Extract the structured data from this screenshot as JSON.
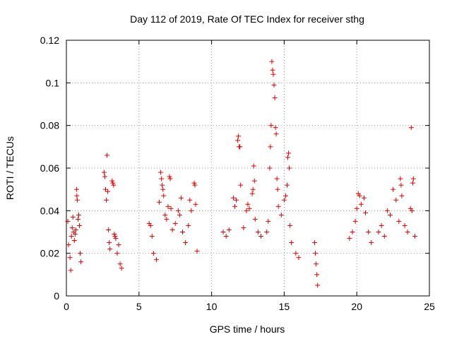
{
  "chart_data": {
    "type": "scatter",
    "title": "Day 112 of 2019, Rate Of TEC Index for receiver sthg",
    "xlabel": "GPS time / hours",
    "ylabel": "ROTI / TECUs",
    "xlim": [
      0,
      25
    ],
    "ylim": [
      0,
      0.12
    ],
    "grid": true,
    "marker": "+",
    "color": "#e00000",
    "x_ticks": [
      {
        "value": 0,
        "label": "0"
      },
      {
        "value": 5,
        "label": "5"
      },
      {
        "value": 10,
        "label": "10"
      },
      {
        "value": 15,
        "label": "15"
      },
      {
        "value": 20,
        "label": "20"
      },
      {
        "value": 25,
        "label": "25"
      }
    ],
    "y_ticks": [
      {
        "value": 0,
        "label": "0"
      },
      {
        "value": 0.02,
        "label": "0.02"
      },
      {
        "value": 0.04,
        "label": "0.04"
      },
      {
        "value": 0.06,
        "label": "0.06"
      },
      {
        "value": 0.08,
        "label": "0.08"
      },
      {
        "value": 0.1,
        "label": "0.1"
      },
      {
        "value": 0.12,
        "label": "0.12"
      }
    ],
    "series": [
      {
        "name": "ROTI",
        "points": [
          [
            0.1,
            0.035
          ],
          [
            0.15,
            0.024
          ],
          [
            0.25,
            0.018
          ],
          [
            0.3,
            0.012
          ],
          [
            0.35,
            0.028
          ],
          [
            0.4,
            0.032
          ],
          [
            0.45,
            0.037
          ],
          [
            0.5,
            0.03
          ],
          [
            0.55,
            0.026
          ],
          [
            0.6,
            0.029
          ],
          [
            0.65,
            0.031
          ],
          [
            0.7,
            0.05
          ],
          [
            0.72,
            0.047
          ],
          [
            0.75,
            0.045
          ],
          [
            0.8,
            0.036
          ],
          [
            0.85,
            0.038
          ],
          [
            0.9,
            0.033
          ],
          [
            0.95,
            0.02
          ],
          [
            1.0,
            0.016
          ],
          [
            2.6,
            0.058
          ],
          [
            2.65,
            0.056
          ],
          [
            2.7,
            0.05
          ],
          [
            2.75,
            0.045
          ],
          [
            2.8,
            0.066
          ],
          [
            2.85,
            0.049
          ],
          [
            2.9,
            0.031
          ],
          [
            2.95,
            0.025
          ],
          [
            3.0,
            0.022
          ],
          [
            3.15,
            0.054
          ],
          [
            3.2,
            0.053
          ],
          [
            3.25,
            0.052
          ],
          [
            3.3,
            0.029
          ],
          [
            3.35,
            0.028
          ],
          [
            3.4,
            0.027
          ],
          [
            3.5,
            0.02
          ],
          [
            3.6,
            0.024
          ],
          [
            3.7,
            0.015
          ],
          [
            3.8,
            0.013
          ],
          [
            5.7,
            0.034
          ],
          [
            5.8,
            0.033
          ],
          [
            5.9,
            0.028
          ],
          [
            6.0,
            0.02
          ],
          [
            6.2,
            0.017
          ],
          [
            6.4,
            0.044
          ],
          [
            6.5,
            0.058
          ],
          [
            6.55,
            0.055
          ],
          [
            6.6,
            0.052
          ],
          [
            6.65,
            0.05
          ],
          [
            6.7,
            0.047
          ],
          [
            6.8,
            0.038
          ],
          [
            6.9,
            0.036
          ],
          [
            7.0,
            0.042
          ],
          [
            7.1,
            0.056
          ],
          [
            7.15,
            0.055
          ],
          [
            7.2,
            0.041
          ],
          [
            7.3,
            0.031
          ],
          [
            7.5,
            0.034
          ],
          [
            7.7,
            0.04
          ],
          [
            7.8,
            0.038
          ],
          [
            7.9,
            0.046
          ],
          [
            8.0,
            0.03
          ],
          [
            8.2,
            0.025
          ],
          [
            8.4,
            0.033
          ],
          [
            8.5,
            0.045
          ],
          [
            8.6,
            0.04
          ],
          [
            8.8,
            0.053
          ],
          [
            8.85,
            0.052
          ],
          [
            8.9,
            0.043
          ],
          [
            9.0,
            0.021
          ],
          [
            10.8,
            0.03
          ],
          [
            11.0,
            0.028
          ],
          [
            11.2,
            0.031
          ],
          [
            11.5,
            0.046
          ],
          [
            11.6,
            0.042
          ],
          [
            11.7,
            0.045
          ],
          [
            11.8,
            0.073
          ],
          [
            11.85,
            0.075
          ],
          [
            11.9,
            0.07
          ],
          [
            11.95,
            0.07
          ],
          [
            12.0,
            0.052
          ],
          [
            12.2,
            0.032
          ],
          [
            12.4,
            0.04
          ],
          [
            12.5,
            0.043
          ],
          [
            12.6,
            0.041
          ],
          [
            12.8,
            0.048
          ],
          [
            12.85,
            0.05
          ],
          [
            12.9,
            0.061
          ],
          [
            12.95,
            0.054
          ],
          [
            13.0,
            0.036
          ],
          [
            13.2,
            0.03
          ],
          [
            13.4,
            0.028
          ],
          [
            13.8,
            0.03
          ],
          [
            13.9,
            0.035
          ],
          [
            14.0,
            0.06
          ],
          [
            14.05,
            0.07
          ],
          [
            14.1,
            0.08
          ],
          [
            14.15,
            0.11
          ],
          [
            14.2,
            0.106
          ],
          [
            14.25,
            0.104
          ],
          [
            14.3,
            0.099
          ],
          [
            14.35,
            0.093
          ],
          [
            14.4,
            0.079
          ],
          [
            14.45,
            0.076
          ],
          [
            14.5,
            0.055
          ],
          [
            14.55,
            0.05
          ],
          [
            14.6,
            0.042
          ],
          [
            14.8,
            0.038
          ],
          [
            15.0,
            0.045
          ],
          [
            15.1,
            0.047
          ],
          [
            15.2,
            0.052
          ],
          [
            15.25,
            0.065
          ],
          [
            15.3,
            0.067
          ],
          [
            15.35,
            0.06
          ],
          [
            15.4,
            0.033
          ],
          [
            15.5,
            0.025
          ],
          [
            15.8,
            0.02
          ],
          [
            16.0,
            0.018
          ],
          [
            17.1,
            0.025
          ],
          [
            17.15,
            0.02
          ],
          [
            17.2,
            0.015
          ],
          [
            17.25,
            0.01
          ],
          [
            17.3,
            0.005
          ],
          [
            19.5,
            0.027
          ],
          [
            19.7,
            0.03
          ],
          [
            19.9,
            0.035
          ],
          [
            20.0,
            0.041
          ],
          [
            20.1,
            0.048
          ],
          [
            20.2,
            0.047
          ],
          [
            20.3,
            0.043
          ],
          [
            20.5,
            0.046
          ],
          [
            20.6,
            0.039
          ],
          [
            20.8,
            0.03
          ],
          [
            21.0,
            0.025
          ],
          [
            21.5,
            0.03
          ],
          [
            21.7,
            0.033
          ],
          [
            21.9,
            0.028
          ],
          [
            22.1,
            0.04
          ],
          [
            22.3,
            0.038
          ],
          [
            22.5,
            0.05
          ],
          [
            22.7,
            0.045
          ],
          [
            22.9,
            0.035
          ],
          [
            23.0,
            0.055
          ],
          [
            23.05,
            0.052
          ],
          [
            23.1,
            0.047
          ],
          [
            23.3,
            0.033
          ],
          [
            23.5,
            0.03
          ],
          [
            23.7,
            0.041
          ],
          [
            23.75,
            0.079
          ],
          [
            23.8,
            0.04
          ],
          [
            23.85,
            0.053
          ],
          [
            23.9,
            0.055
          ],
          [
            24.0,
            0.028
          ]
        ]
      }
    ]
  }
}
